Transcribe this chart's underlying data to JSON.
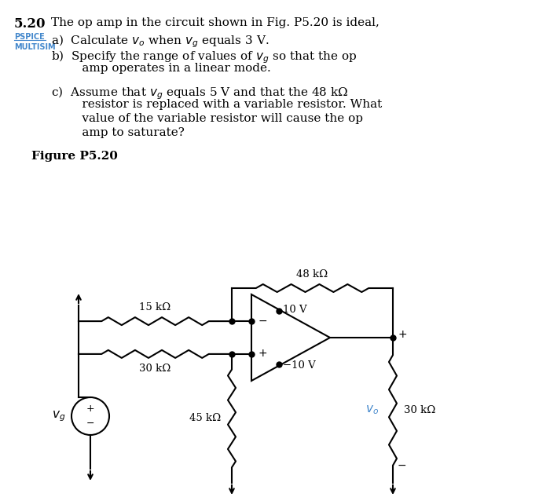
{
  "bg_color": "#ffffff",
  "text_color": "#000000",
  "blue_color": "#4488cc",
  "title_num": "5.20",
  "title_text": "The op amp in the circuit shown in Fig. P5.20 is ideal,",
  "pspice_label": "PSPICE",
  "multisim_label": "MULTISIM",
  "part_a": "a)  Calculate $v_o$ when $v_g$ equals 3 V.",
  "part_b1": "b)  Specify the range of values of $v_g$ so that the op",
  "part_b2": "     amp operates in a linear mode.",
  "part_c1": "c)  Assume that $v_g$ equals 5 V and that the 48 kΩ",
  "part_c2": "     resistor is replaced with a variable resistor. What",
  "part_c3": "     value of the variable resistor will cause the op",
  "part_c4": "     amp to saturate?",
  "figure_label": "Figure P5.20",
  "R48_label": "48 kΩ",
  "R15_label": "15 kΩ",
  "R30m_label": "30 kΩ",
  "R45_label": "45 kΩ",
  "R30r_label": "30 kΩ",
  "V10p_label": "10 V",
  "V10n_label": "−10 V",
  "Vg_label": "$v_g$",
  "Vo_label": "$v_o$",
  "plus_label": "+",
  "minus_label": "−"
}
